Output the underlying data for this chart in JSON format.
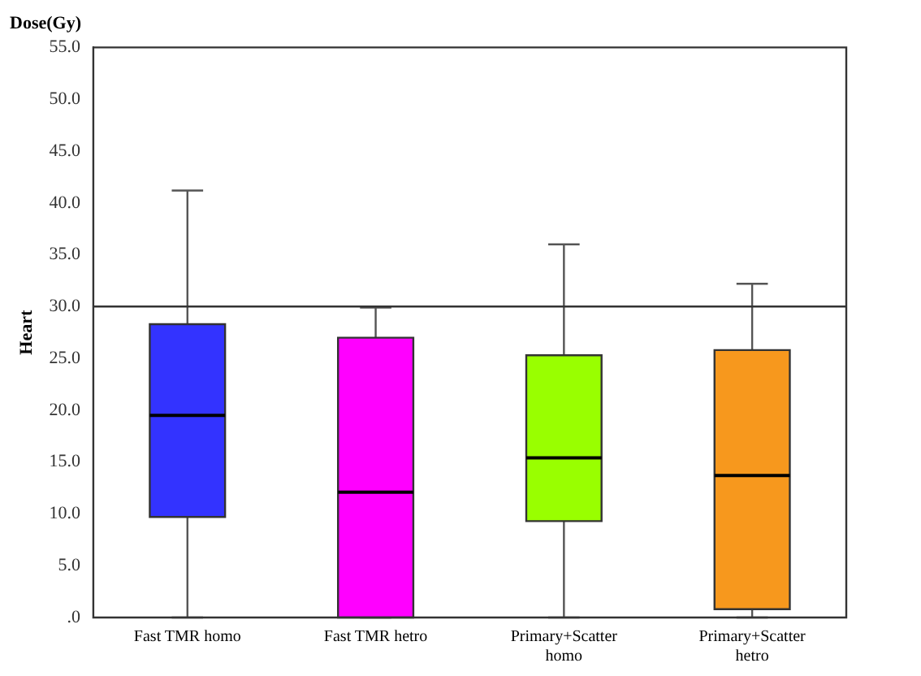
{
  "chart_data": {
    "type": "box",
    "title": "Dose(Gy)",
    "ylabel": "Heart",
    "categories": [
      "Fast TMR homo",
      "Fast TMR hetro",
      "Primary+Scatter homo",
      "Primary+Scatter hetro"
    ],
    "boxes": [
      {
        "low": 0,
        "q1": 9.7,
        "median": 19.5,
        "q3": 28.3,
        "high": 41.2
      },
      {
        "low": 0,
        "q1": 0,
        "median": 12.1,
        "q3": 27.0,
        "high": 29.9
      },
      {
        "low": 0,
        "q1": 9.3,
        "median": 15.4,
        "q3": 25.3,
        "high": 36.0
      },
      {
        "low": 0,
        "q1": 0.8,
        "median": 13.7,
        "q3": 25.8,
        "high": 32.2
      }
    ],
    "colors": [
      "#3333ff",
      "#ff00ff",
      "#99ff00",
      "#f7981d"
    ],
    "ylim": [
      0,
      55
    ],
    "yticks": [
      {
        "value": 0,
        "label": ".0"
      },
      {
        "value": 5,
        "label": "5.0"
      },
      {
        "value": 10,
        "label": "10.0"
      },
      {
        "value": 15,
        "label": "15.0"
      },
      {
        "value": 20,
        "label": "20.0"
      },
      {
        "value": 25,
        "label": "25.0"
      },
      {
        "value": 30,
        "label": "30.0"
      },
      {
        "value": 35,
        "label": "35.0"
      },
      {
        "value": 40,
        "label": "40.0"
      },
      {
        "value": 45,
        "label": "45.0"
      },
      {
        "value": 50,
        "label": "50.0"
      },
      {
        "value": 55,
        "label": "55.0"
      }
    ],
    "grid": false,
    "ref_lines": [
      {
        "axis": "y",
        "value": 30,
        "color": "#333333"
      }
    ]
  }
}
